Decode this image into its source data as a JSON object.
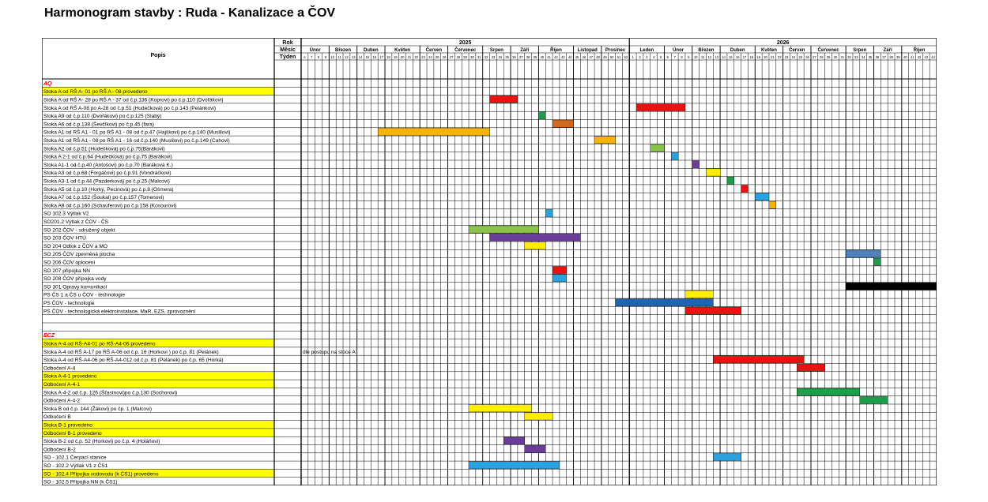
{
  "title": "Harmonogram stavby : Ruda - Kanalizace a ČOV",
  "header": {
    "popis": "Popis",
    "rok": "Rok",
    "mesic": "Měsíc",
    "tyden": "Týden",
    "years": [
      "2025",
      "2026"
    ],
    "months_2025": [
      "Únor",
      "Březen",
      "Duben",
      "Květen",
      "Červen",
      "Červenec",
      "Srpen",
      "Září",
      "Říjen",
      "Listopad",
      "Prosinec"
    ],
    "months_2026": [
      "Leden",
      "Únor",
      "Březen",
      "Duben",
      "Květen",
      "Červen",
      "Červenec",
      "Srpen",
      "Září",
      "Říjen"
    ],
    "weeks": [
      "6",
      "7",
      "8",
      "9",
      "10",
      "11",
      "12",
      "13",
      "14",
      "15",
      "16",
      "17",
      "18",
      "19",
      "20",
      "21",
      "22",
      "23",
      "24",
      "25",
      "26",
      "27",
      "28",
      "29",
      "30",
      "31",
      "32",
      "33",
      "34",
      "35",
      "36",
      "37",
      "38",
      "39",
      "40",
      "41",
      "42",
      "43",
      "44",
      "45",
      "46",
      "47",
      "48",
      "49",
      "50",
      "51",
      "52",
      "1",
      "2",
      "3",
      "4",
      "5",
      "6",
      "7",
      "8",
      "9",
      "10",
      "11",
      "12",
      "13",
      "14",
      "15",
      "16",
      "17",
      "18",
      "19",
      "20",
      "21",
      "22",
      "23",
      "24",
      "25",
      "26",
      "27",
      "28",
      "29",
      "30",
      "31",
      "32",
      "33",
      "34",
      "35",
      "36",
      "37",
      "38",
      "39",
      "40",
      "41",
      "42",
      "43",
      "44"
    ]
  },
  "colors": {
    "highlight": "#ffff00",
    "section": "#ff0000",
    "red": "#ee1111",
    "orange": "#d2691e",
    "gold": "#f5b400",
    "green": "#1e9e4a",
    "lightgreen": "#8bc34a",
    "blue": "#29a3e0",
    "purple": "#6a3d9a",
    "yellow": "#ffee00",
    "darkblue": "#1f63b5",
    "steel": "#4f81bd",
    "black": "#000000"
  },
  "rows": [
    {
      "text": "AQ",
      "section": true
    },
    {
      "text": "Stoka A od RŠ A- 01 po RŠ A - 08  provedeno",
      "hl": true
    },
    {
      "text": "Stoka A od RŠ A- 28 po RŠ A - 37 od č.p.136 (Koprovi) po č.p.110 (Dvořákovi)",
      "bars": [
        {
          "s": 27,
          "e": 30,
          "c": "red"
        }
      ]
    },
    {
      "text": "Stoka A od RŠ A-08 po A-28 od č.p.51 (Hudečková) po č.p.143 (Pelánkovi)",
      "bars": [
        {
          "s": 48,
          "e": 54,
          "c": "red"
        }
      ]
    },
    {
      "text": "Stoka A9 od č.p.110 (Dvořákovi) po č.p.125 (Slabý)",
      "bars": [
        {
          "s": 34,
          "e": 34,
          "c": "green"
        }
      ]
    },
    {
      "text": "Stoka A6 od č.p.138 (Ševčíkovi) po č.p.45 (fara)",
      "bars": [
        {
          "s": 36,
          "e": 38,
          "c": "orange"
        }
      ]
    },
    {
      "text": "Stoka A1 od RŠ A1 - 01 po RŠ A1 - 08 od č.p.47 (Hajškovi) po č.p.140 (Muslilovi)",
      "bars": [
        {
          "s": 11,
          "e": 26,
          "c": "gold"
        }
      ]
    },
    {
      "text": "Stoka A1 od RŠ A1 - 08 po RŠ A1 - 16 od č.p.140 (Muslilovi) po č.p.149 (Cahovi)",
      "bars": [
        {
          "s": 42,
          "e": 44,
          "c": "gold"
        }
      ]
    },
    {
      "text": "Stoka A2 od č.p.51 (Hudečková) po č.p.75(Barákovi)",
      "bars": [
        {
          "s": 50,
          "e": 51,
          "c": "lightgreen"
        }
      ]
    },
    {
      "text": "Stoka A 2-1 od č.p.64 (Hudečková) po č.p.75 (Barákovi)",
      "bars": [
        {
          "s": 53,
          "e": 53,
          "c": "blue"
        }
      ]
    },
    {
      "text": "Stoka A1-1 od č.p.40 (Antošovi) po č.p.70 (Baráková K.)",
      "bars": [
        {
          "s": 56,
          "e": 56,
          "c": "purple"
        }
      ]
    },
    {
      "text": "Stoka A3 od č.p.68 (Forgáčovi) po č.p.91 (Vondráčkovi)",
      "bars": [
        {
          "s": 58,
          "e": 59,
          "c": "yellow"
        }
      ]
    },
    {
      "text": "Stoka A3-1 od č.p.44 (Pazderková) po č.p.25 (Malcovi)",
      "bars": [
        {
          "s": 61,
          "e": 61,
          "c": "green"
        }
      ]
    },
    {
      "text": "Stoka A5 od č.p.10 (Horký, Pecinová) po č.p.8 (Ošmera)",
      "bars": [
        {
          "s": 63,
          "e": 63,
          "c": "red"
        }
      ]
    },
    {
      "text": "Stoka A7 od č.p.152 (Šoukal) po č.p.157 (Tomenovi)",
      "bars": [
        {
          "s": 65,
          "e": 66,
          "c": "blue"
        }
      ]
    },
    {
      "text": "Stoka A8 od č.p.160 (Schauferovi) po č.p.158 (Kosourovi)",
      "bars": [
        {
          "s": 67,
          "e": 67,
          "c": "gold"
        }
      ]
    },
    {
      "text": "SO 102.3 Výtlak V2",
      "bars": [
        {
          "s": 35,
          "e": 35,
          "c": "blue"
        }
      ]
    },
    {
      "text": "SO201.2 Výtlak z ČOV - ČS"
    },
    {
      "text": "SO 202 ČOV - sdružený objekt",
      "bars": [
        {
          "s": 24,
          "e": 33,
          "c": "lightgreen"
        }
      ]
    },
    {
      "text": "SO 203 ČOV HTÚ",
      "bars": [
        {
          "s": 27,
          "e": 39,
          "c": "purple"
        }
      ]
    },
    {
      "text": "SO 204 Odtok z ČOV a MO",
      "bars": [
        {
          "s": 32,
          "e": 34,
          "c": "yellow"
        }
      ]
    },
    {
      "text": "SO 205 ČOV zpevněná plocha",
      "bars": [
        {
          "s": 78,
          "e": 82,
          "c": "steel"
        }
      ]
    },
    {
      "text": "SO 206 ČOV oplocení",
      "bars": [
        {
          "s": 82,
          "e": 82,
          "c": "green"
        }
      ]
    },
    {
      "text": "SO 207 přípojka NN",
      "bars": [
        {
          "s": 36,
          "e": 37,
          "c": "red"
        }
      ]
    },
    {
      "text": "SO 208 ČOV přípojka vody",
      "bars": [
        {
          "s": 36,
          "e": 37,
          "c": "blue"
        }
      ]
    },
    {
      "text": "SO 301 Opravy komunikací",
      "bars": [
        {
          "s": 78,
          "e": 96,
          "c": "black"
        }
      ]
    },
    {
      "text": "PS ČS 1 a ČS u ČOV - technologie",
      "bars": [
        {
          "s": 55,
          "e": 58,
          "c": "yellow"
        }
      ]
    },
    {
      "text": "PS ČOV - technologie",
      "bars": [
        {
          "s": 45,
          "e": 58,
          "c": "darkblue"
        }
      ]
    },
    {
      "text": "PS ČOV - technologická elektroinstalace, MaR, EZS, zprovoznění",
      "bars": [
        {
          "s": 55,
          "e": 62,
          "c": "red"
        }
      ]
    },
    {
      "text": ""
    },
    {
      "text": ""
    },
    {
      "text": "ECZ",
      "section": true
    },
    {
      "text": "Stoka A-4 od RŠ-A4-01 po RŠ-A4-06 provedeno",
      "hl": true
    },
    {
      "text": "Stoka A-4 od RŠ A-17 po RŠ A-06 od č.p. 16 (Horkovi ) po č.p. 81 (Pelánek)",
      "note": "dle postupu na stoce A"
    },
    {
      "text": "Stoka A-4 od RŠ-A4-06 po RŠ-A4-012 od č.p. 81 (Pelánek) po č.p. 65 (Horká)",
      "bars": [
        {
          "s": 59,
          "e": 71,
          "c": "red"
        }
      ]
    },
    {
      "text": "Odbočení A-4",
      "bars": [
        {
          "s": 71,
          "e": 74,
          "c": "red"
        }
      ]
    },
    {
      "text": "Stoka A-4-1 provedeno",
      "hl": true
    },
    {
      "text": "Odbočení A-4-1",
      "hl": true
    },
    {
      "text": "Stoka A-4-2 od č.p. 126 (Šťastnovi)po č.p.130 (Sochorovi)",
      "bars": [
        {
          "s": 71,
          "e": 79,
          "c": "green"
        }
      ]
    },
    {
      "text": "Odbočení A-4-2",
      "bars": [
        {
          "s": 80,
          "e": 83,
          "c": "green"
        }
      ]
    },
    {
      "text": "Stoka B od č.p. 144 (Žákovi) po čp. 1 (Malcovi)",
      "bars": [
        {
          "s": 24,
          "e": 32,
          "c": "yellow"
        }
      ]
    },
    {
      "text": "Odbočení B",
      "bars": [
        {
          "s": 32,
          "e": 35,
          "c": "yellow"
        }
      ]
    },
    {
      "text": "Stoka B-1 provedeno",
      "hl": true
    },
    {
      "text": "Odbočení B-1 provedeno",
      "hl": true
    },
    {
      "text": "Stoka B-2 od č.p. 52 (Horkovi) po č.p. 4 (Holáňovi)",
      "bars": [
        {
          "s": 29,
          "e": 31,
          "c": "purple"
        }
      ]
    },
    {
      "text": "Odbočení B-2",
      "bars": [
        {
          "s": 32,
          "e": 34,
          "c": "purple"
        }
      ]
    },
    {
      "text": "SO - 102.1 Čerpací stanice",
      "bars": [
        {
          "s": 59,
          "e": 62,
          "c": "blue"
        }
      ]
    },
    {
      "text": "SO - 102.2 Výtlak V1 z ČS1",
      "bars": [
        {
          "s": 24,
          "e": 36,
          "c": "blue"
        }
      ]
    },
    {
      "text": "SO - 102.4 Přípojka vodovodu (k ČS1) provedeno",
      "hl": true
    },
    {
      "text": "SO - 102.5 Přípojka NN (k ČS1)"
    }
  ]
}
